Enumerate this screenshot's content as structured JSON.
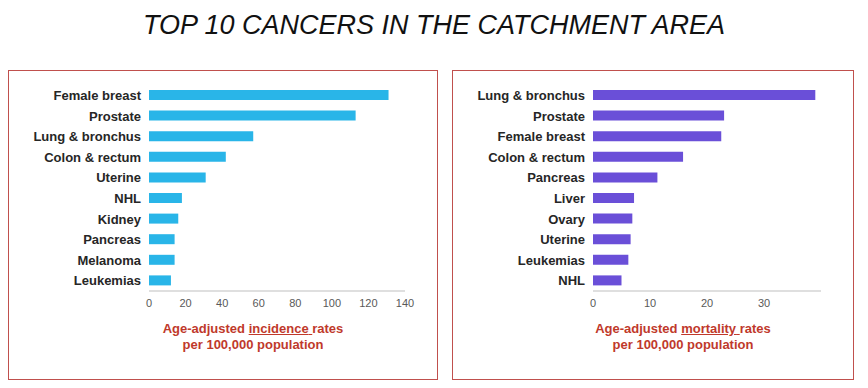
{
  "title": "TOP 10 CANCERS IN THE CATCHMENT AREA",
  "chart_data": [
    {
      "type": "bar",
      "orientation": "horizontal",
      "categories": [
        "Female breast",
        "Prostate",
        "Lung & bronchus",
        "Colon & rectum",
        "Uterine",
        "NHL",
        "Kidney",
        "Pancreas",
        "Melanoma",
        "Leukemias"
      ],
      "values": [
        131,
        113,
        57,
        42,
        31,
        18,
        16,
        14,
        14,
        12
      ],
      "color": "#29b5e8",
      "xlim": [
        0,
        140
      ],
      "xticks": [
        0,
        20,
        40,
        60,
        80,
        100,
        120,
        140
      ],
      "xlabel": "Age-adjusted incidence rates per 100,000 population",
      "grid": false
    },
    {
      "type": "bar",
      "orientation": "horizontal",
      "categories": [
        "Lung & bronchus",
        "Prostate",
        "Female breast",
        "Colon & rectum",
        "Pancreas",
        "Liver",
        "Ovary",
        "Uterine",
        "Leukemias",
        "NHL"
      ],
      "values": [
        39,
        23,
        22.5,
        15.8,
        11.3,
        7.2,
        6.9,
        6.6,
        6.2,
        5
      ],
      "color": "#6a4fd8",
      "xlim": [
        0,
        40
      ],
      "xticks": [
        0,
        10,
        20,
        30
      ],
      "xlabel": "Age-adjusted mortality rates per 100,000 population",
      "grid": false
    }
  ]
}
